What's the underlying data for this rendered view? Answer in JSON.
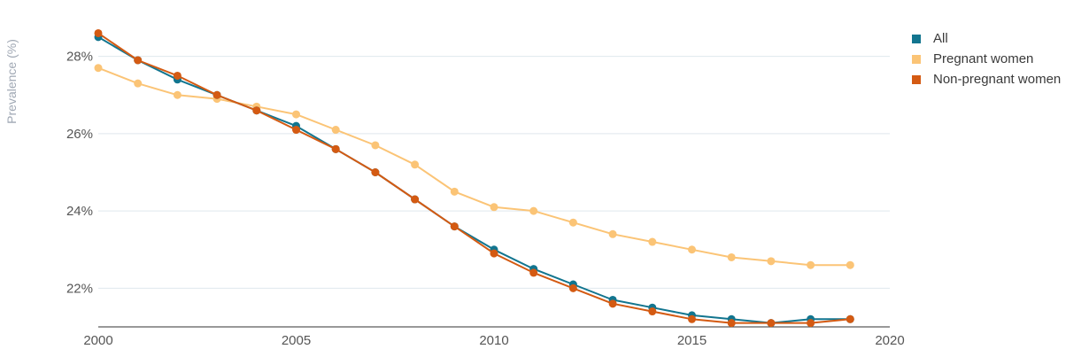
{
  "chart_data": {
    "type": "line",
    "title": "",
    "xlabel": "",
    "ylabel": "Prevalence (%)",
    "xlim": [
      2000,
      2020
    ],
    "ylim": [
      21,
      29
    ],
    "xticks": [
      2000,
      2005,
      2010,
      2015,
      2020
    ],
    "xtick_labels": [
      "2000",
      "2005",
      "2010",
      "2015",
      "2020"
    ],
    "yticks": [
      22,
      24,
      26,
      28
    ],
    "ytick_labels": [
      "22%",
      "24%",
      "26%",
      "28%"
    ],
    "grid": "horizontal",
    "legend_position": "top-right",
    "x": [
      2000,
      2001,
      2002,
      2003,
      2004,
      2005,
      2006,
      2007,
      2008,
      2009,
      2010,
      2011,
      2012,
      2013,
      2014,
      2015,
      2016,
      2017,
      2018,
      2019
    ],
    "series": [
      {
        "name": "All",
        "color": "#12758f",
        "values": [
          28.5,
          27.9,
          27.4,
          27.0,
          26.6,
          26.2,
          25.6,
          25.0,
          24.3,
          23.6,
          23.0,
          22.5,
          22.1,
          21.7,
          21.5,
          21.3,
          21.2,
          21.1,
          21.2,
          21.2
        ]
      },
      {
        "name": "Pregnant women",
        "color": "#fbc476",
        "values": [
          27.7,
          27.3,
          27.0,
          26.9,
          26.7,
          26.5,
          26.1,
          25.7,
          25.2,
          24.5,
          24.1,
          24.0,
          23.7,
          23.4,
          23.2,
          23.0,
          22.8,
          22.7,
          22.6,
          22.6
        ]
      },
      {
        "name": "Non-pregnant women",
        "color": "#d45a12",
        "values": [
          28.6,
          27.9,
          27.5,
          27.0,
          26.6,
          26.1,
          25.6,
          25.0,
          24.3,
          23.6,
          22.9,
          22.4,
          22.0,
          21.6,
          21.4,
          21.2,
          21.1,
          21.1,
          21.1,
          21.2
        ]
      }
    ]
  },
  "colors": {
    "grid": "#dfe8ed",
    "axis": "#333333"
  }
}
